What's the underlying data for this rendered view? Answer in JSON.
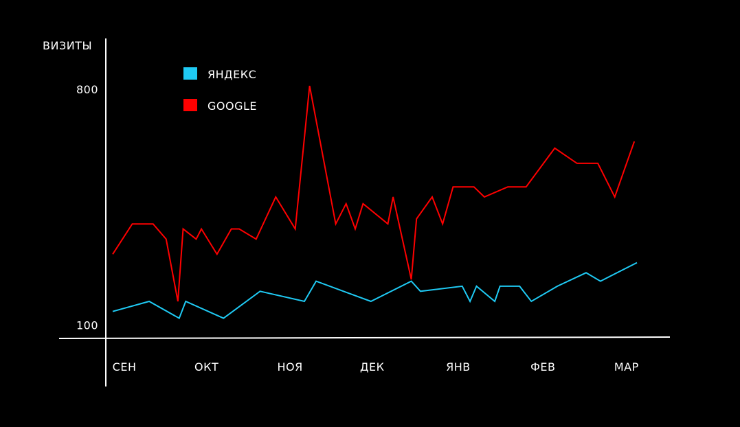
{
  "chart_data": {
    "type": "line",
    "ylabel": "ВИЗИТЫ",
    "yticks": [
      {
        "value": 100,
        "label": "100"
      },
      {
        "value": 800,
        "label": "800"
      }
    ],
    "ylim": [
      60,
      860
    ],
    "xlim": [
      -1,
      40
    ],
    "xticks": [
      {
        "x": 0.9,
        "label": "СЕН"
      },
      {
        "x": 7.2,
        "label": "ОКТ"
      },
      {
        "x": 13.6,
        "label": "НОЯ"
      },
      {
        "x": 19.9,
        "label": "ДЕК"
      },
      {
        "x": 26.5,
        "label": "ЯНВ"
      },
      {
        "x": 33.0,
        "label": "ФЕВ"
      },
      {
        "x": 39.4,
        "label": "МАР"
      }
    ],
    "legend_position": "top-left",
    "series": [
      {
        "name": "ЯНДЕКС",
        "color": "#1fcaf4",
        "points": [
          [
            0,
            140
          ],
          [
            2.8,
            170
          ],
          [
            5.1,
            120
          ],
          [
            5.6,
            170
          ],
          [
            8.5,
            120
          ],
          [
            11.3,
            200
          ],
          [
            14.7,
            170
          ],
          [
            15.6,
            230
          ],
          [
            19.8,
            170
          ],
          [
            22.9,
            230
          ],
          [
            23.6,
            200
          ],
          [
            26.8,
            215
          ],
          [
            27.4,
            170
          ],
          [
            27.9,
            215
          ],
          [
            29.3,
            170
          ],
          [
            29.7,
            215
          ],
          [
            31.2,
            215
          ],
          [
            32.1,
            170
          ],
          [
            34.1,
            215
          ],
          [
            36.3,
            255
          ],
          [
            37.4,
            230
          ],
          [
            40.2,
            285
          ]
        ]
      },
      {
        "name": "GOOGLE",
        "color": "#ff0000",
        "points": [
          [
            0,
            310
          ],
          [
            1.5,
            400
          ],
          [
            3.1,
            400
          ],
          [
            4.1,
            355
          ],
          [
            5.0,
            170
          ],
          [
            5.4,
            385
          ],
          [
            6.4,
            355
          ],
          [
            6.8,
            385
          ],
          [
            8.0,
            310
          ],
          [
            9.1,
            385
          ],
          [
            9.7,
            385
          ],
          [
            11.0,
            355
          ],
          [
            12.5,
            480
          ],
          [
            14.0,
            385
          ],
          [
            15.1,
            810
          ],
          [
            17.1,
            400
          ],
          [
            17.9,
            460
          ],
          [
            18.6,
            385
          ],
          [
            19.2,
            460
          ],
          [
            21.1,
            400
          ],
          [
            21.5,
            480
          ],
          [
            22.9,
            235
          ],
          [
            23.3,
            415
          ],
          [
            24.5,
            480
          ],
          [
            25.3,
            400
          ],
          [
            26.1,
            510
          ],
          [
            27.7,
            510
          ],
          [
            28.5,
            480
          ],
          [
            30.3,
            510
          ],
          [
            31.7,
            510
          ],
          [
            33.9,
            625
          ],
          [
            35.6,
            580
          ],
          [
            37.2,
            580
          ],
          [
            38.5,
            480
          ],
          [
            40.0,
            645
          ]
        ]
      }
    ]
  }
}
